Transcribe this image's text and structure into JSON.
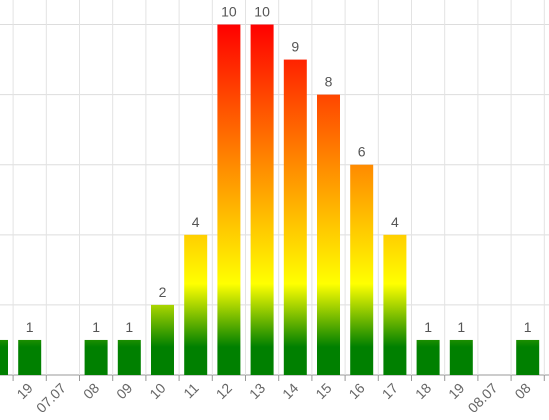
{
  "chart_data": {
    "type": "bar",
    "categories": [
      null,
      "19",
      "07.07",
      "08",
      "09",
      "10",
      "11",
      "12",
      "13",
      "14",
      "15",
      "16",
      "17",
      "18",
      "19",
      "08.07",
      "08"
    ],
    "values": [
      1,
      1,
      null,
      1,
      1,
      2,
      4,
      10,
      10,
      9,
      8,
      6,
      4,
      1,
      1,
      null,
      1
    ],
    "color_stops": [
      {
        "value": 0.8,
        "color": "#008000"
      },
      {
        "value": 2.6,
        "color": "#ffff00"
      },
      {
        "value": 10,
        "color": "#ff0000"
      }
    ],
    "ylim": [
      0,
      10.7
    ],
    "yticks": [
      0,
      2,
      4,
      6,
      8,
      10
    ],
    "grid": true
  }
}
